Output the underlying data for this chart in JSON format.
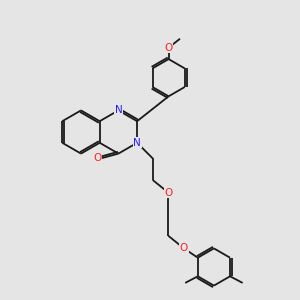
{
  "background_color": "#e5e5e5",
  "bond_color": "#1a1a1a",
  "N_color": "#2020ff",
  "O_color": "#ff2020",
  "lw": 1.3,
  "dbo": 0.06,
  "fs": 7.5,
  "xlim": [
    0,
    10
  ],
  "ylim": [
    0,
    10
  ]
}
